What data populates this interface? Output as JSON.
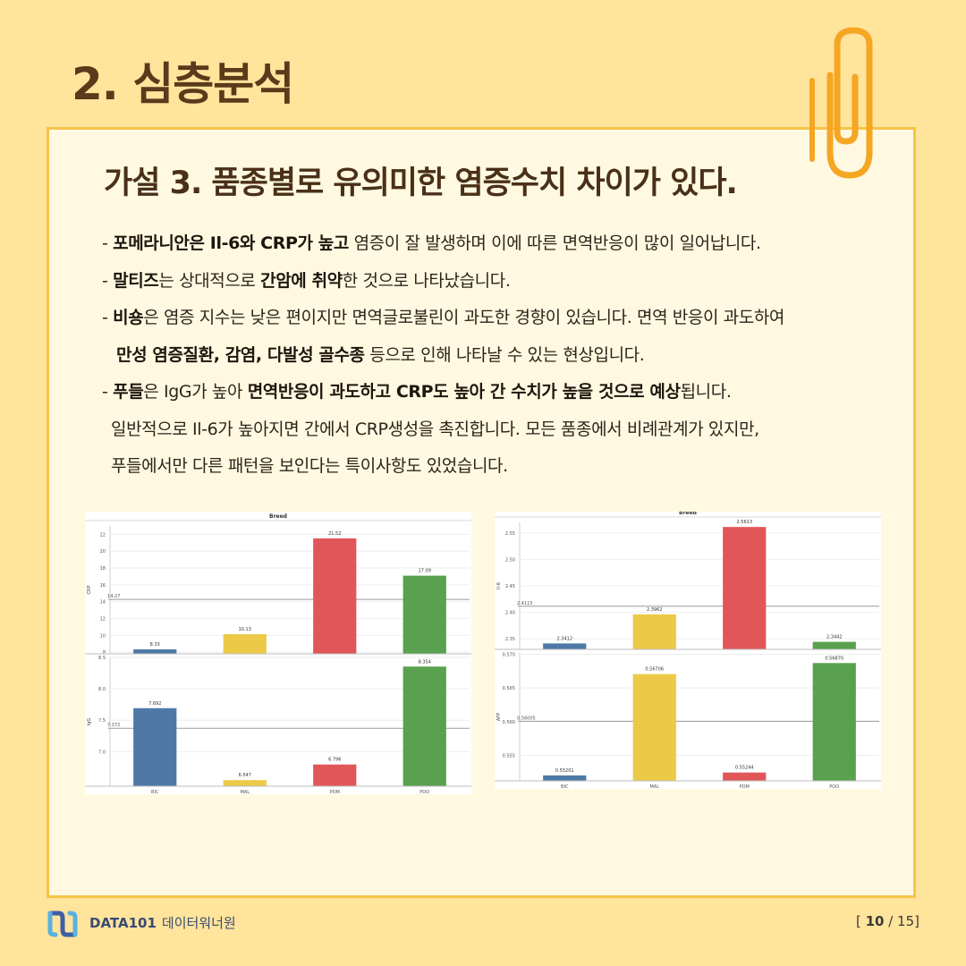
{
  "page": {
    "title": "2. 심층분석",
    "hypothesis": "가설 3. 품종별로 유의미한 염증수치 차이가 있다."
  },
  "bullets": {
    "b1": {
      "p1": "- ",
      "p2": "포메라니안은 Il-6와 CRP가 높고",
      "p3": " 염증이 잘 발생하며 이에 따른 면역반응이 많이 일어납니다."
    },
    "b2": {
      "p1": "- ",
      "p2": "말티즈",
      "p3": "는 상대적으로 ",
      "p4": "간암에 취약",
      "p5": "한 것으로 나타났습니다."
    },
    "b3": {
      "p1": "- ",
      "p2": "비숑",
      "p3": "은 염증 지수는 낮은 편이지만 면역글로불린이 과도한 경향이 있습니다. 면역 반응이 과도하여"
    },
    "b3b": {
      "p1": "만성 염증질환, 감염, 다발성 골수종",
      "p2": " 등으로 인해 나타날 수 있는 현상입니다."
    },
    "b4": {
      "p1": "- ",
      "p2": "푸들",
      "p3": "은 IgG가 높아 ",
      "p4": "면역반응이 과도하고 CRP도 높아 간 수치가 높을 것으로 예상",
      "p5": "됩니다."
    },
    "b4b": "일반적으로 Il-6가 높아지면 간에서 CRP생성을 촉진합니다. 모든 품종에서 비례관계가 있지만,",
    "b4c": "푸들에서만 다른 패턴을 보인다는 특이사항도 있었습니다."
  },
  "chart_data": [
    {
      "type": "bar",
      "title": "Breed",
      "panels": [
        {
          "ylabel": "CRP",
          "categories": [
            "BIC",
            "MAL",
            "POM",
            "POO"
          ],
          "values": [
            8.33,
            10.13,
            21.52,
            17.09
          ],
          "labels": [
            "8.33",
            "10.13",
            "21.52",
            "17.09"
          ],
          "ylim": [
            7.8,
            23
          ],
          "yticks": [
            8,
            10,
            12,
            14,
            16,
            18,
            20,
            22
          ],
          "reference": 14.27,
          "reference_label": "14.27"
        },
        {
          "ylabel": "IgG",
          "categories": [
            "BIC",
            "MAL",
            "POM",
            "POO"
          ],
          "values": [
            7.692,
            6.547,
            6.796,
            8.354
          ],
          "labels": [
            "7.692",
            "6.547",
            "6.796",
            "8.354"
          ],
          "ylim": [
            6.45,
            8.5
          ],
          "yticks": [
            7.0,
            7.5,
            8.0,
            8.5
          ],
          "ytick_labels": [
            "7.0",
            "7.5",
            "8.0",
            "8.5"
          ],
          "reference": 7.372,
          "reference_label": "7.372"
        }
      ],
      "xticks": [
        "BIC",
        "MAL",
        "POM",
        "POO"
      ],
      "colors": [
        "#4e79a7",
        "#edc948",
        "#e15759",
        "#59a14f"
      ],
      "grid": true
    },
    {
      "type": "bar",
      "title": "Breed",
      "panels": [
        {
          "ylabel": "Il-6",
          "categories": [
            "BIC",
            "MAL",
            "POM",
            "POO"
          ],
          "values": [
            2.3412,
            2.3962,
            2.5613,
            2.3442
          ],
          "labels": [
            "2.3412",
            "2.3962",
            "2.5613",
            "2.3442"
          ],
          "ylim": [
            2.33,
            2.57
          ],
          "yticks": [
            2.35,
            2.4,
            2.45,
            2.5,
            2.55
          ],
          "ytick_labels": [
            "2.35",
            "2.40",
            "2.45",
            "2.50",
            "2.55"
          ],
          "reference": 2.4115,
          "reference_label": "2.4115"
        },
        {
          "ylabel": "AFP",
          "categories": [
            "BIC",
            "MAL",
            "POM",
            "POO"
          ],
          "values": [
            0.55201,
            0.56706,
            0.55244,
            0.5687
          ],
          "labels": [
            "0.55201",
            "0.56706",
            "0.55244",
            "0.56870"
          ],
          "ylim": [
            0.5512,
            0.5702
          ],
          "yticks": [
            0.555,
            0.56,
            0.565,
            0.57
          ],
          "ytick_labels": [
            "0.555",
            "0.560",
            "0.565",
            "0.570"
          ],
          "reference": 0.56005,
          "reference_label": "0.56005"
        }
      ],
      "xticks": [
        "BIC",
        "MAL",
        "POM",
        "POO"
      ],
      "colors": [
        "#4e79a7",
        "#edc948",
        "#e15759",
        "#59a14f"
      ],
      "grid": true
    }
  ],
  "footer": {
    "brand": "DATA101",
    "org": "데이터워너원",
    "page_prefix": "[ ",
    "page_current": "10",
    "page_suffix": " / 15]"
  },
  "colors": {
    "background": "#ffe49c",
    "card": "#fff9e2",
    "card_border": "#f6c44a",
    "clip": "#f5a623"
  },
  "icons": [
    "paperclip-icon",
    "data101-logo-icon"
  ]
}
